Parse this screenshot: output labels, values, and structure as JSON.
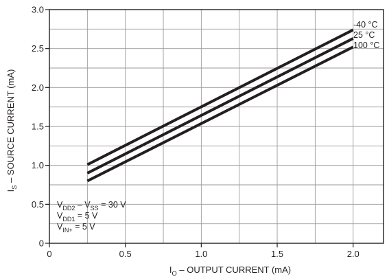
{
  "chart_data": {
    "type": "line",
    "title": "",
    "xlabel": {
      "main": "I",
      "sub": "O",
      "rest": " – OUTPUT CURRENT (mA)"
    },
    "ylabel": {
      "main": "I",
      "sub": "S",
      "rest": " – SOURCE CURRENT (mA)"
    },
    "xlim": [
      0,
      2.2
    ],
    "ylim": [
      0,
      3.0
    ],
    "x_ticks": [
      0,
      0.5,
      1.0,
      1.5,
      2.0
    ],
    "x_tick_labels": [
      "0",
      "0.5",
      "1.0",
      "1.5",
      "2.0"
    ],
    "y_ticks": [
      0,
      0.5,
      1.0,
      1.5,
      2.0,
      2.5,
      3.0
    ],
    "y_tick_labels": [
      "0",
      "0.5",
      "1.0",
      "1.5",
      "2.0",
      "2.5",
      "3.0"
    ],
    "grid": true,
    "x_grid_step": 0.25,
    "y_grid_step": 0.25,
    "series": [
      {
        "name": "-40 °C",
        "x": [
          0.25,
          2.0
        ],
        "y": [
          1.01,
          2.74
        ]
      },
      {
        "name": "25 °C",
        "x": [
          0.25,
          2.0
        ],
        "y": [
          0.9,
          2.63
        ]
      },
      {
        "name": "100 °C",
        "x": [
          0.25,
          2.0
        ],
        "y": [
          0.8,
          2.52
        ]
      }
    ],
    "annotations": [
      {
        "parts": [
          [
            "V",
            ""
          ],
          [
            "DD2",
            "sub"
          ],
          [
            " – V",
            ""
          ],
          [
            "SS",
            "sub"
          ],
          [
            " = 30 V",
            ""
          ]
        ]
      },
      {
        "parts": [
          [
            "V",
            ""
          ],
          [
            "DD1",
            "sub"
          ],
          [
            " = 5 V",
            ""
          ]
        ]
      },
      {
        "parts": [
          [
            "V",
            ""
          ],
          [
            "IN+",
            "sub"
          ],
          [
            " = 5 V",
            ""
          ]
        ]
      }
    ],
    "colors": {
      "line": "#231f20",
      "grid": "#9a9a9a",
      "axis": "#231f20"
    }
  }
}
